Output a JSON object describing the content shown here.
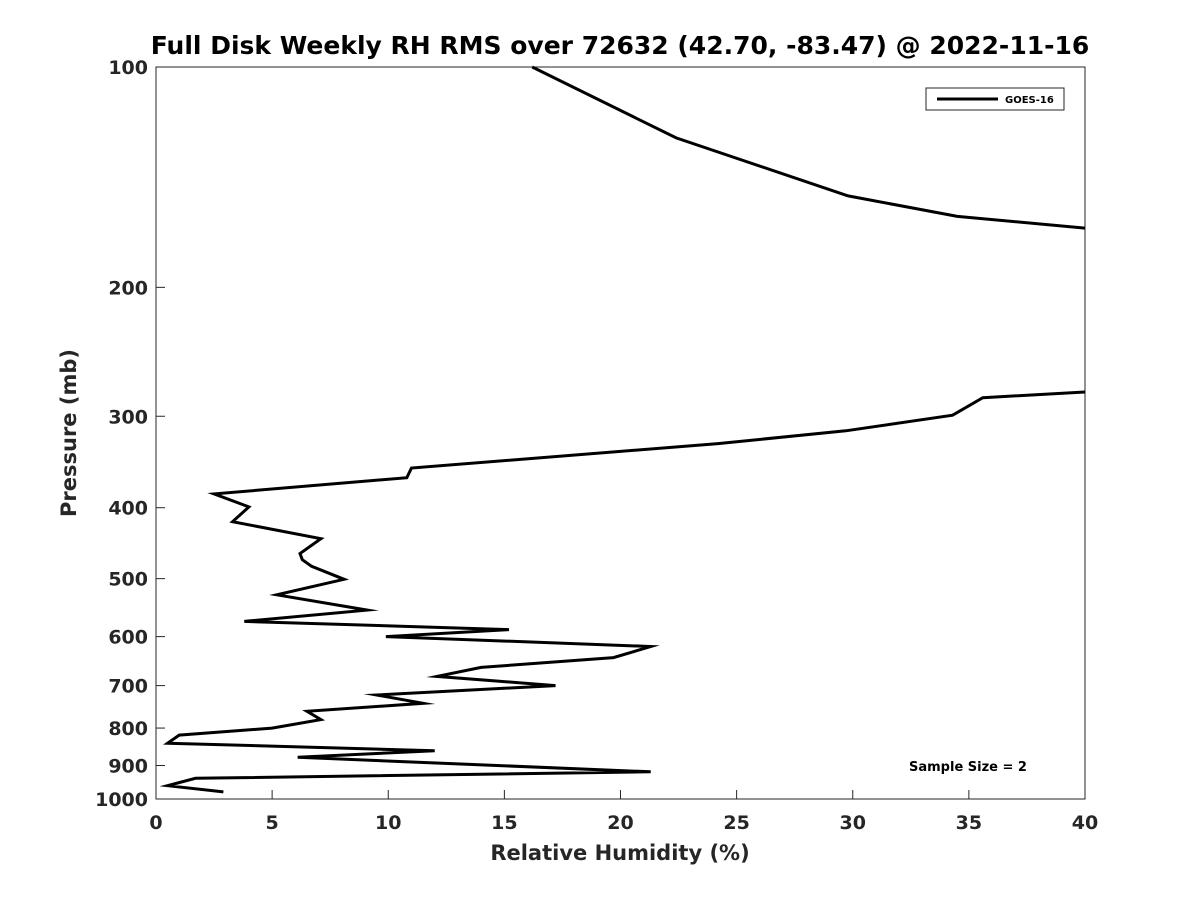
{
  "chart_data": {
    "type": "line",
    "title": "Full Disk Weekly RH RMS over 72632 (42.70, -83.47) @ 2022-11-16",
    "xlabel": "Relative Humidity (%)",
    "ylabel": "Pressure (mb)",
    "xlim": [
      0,
      40
    ],
    "ylim": [
      100,
      1000
    ],
    "y_scale": "log",
    "y_reversed": true,
    "xticks": [
      0,
      5,
      10,
      15,
      20,
      25,
      30,
      35,
      40
    ],
    "yticks": [
      100,
      200,
      300,
      400,
      500,
      600,
      700,
      800,
      900,
      1000
    ],
    "grid": false,
    "legend_position": "top-right",
    "series": [
      {
        "name": "GOES-16",
        "color": "#000000",
        "segments": [
          [
            [
              16.2,
              100
            ],
            [
              22.4,
              125
            ],
            [
              29.8,
              150
            ],
            [
              34.5,
              160
            ],
            [
              40.0,
              166
            ]
          ],
          [
            [
              40.0,
              278
            ],
            [
              35.6,
              283
            ],
            [
              34.3,
              299
            ],
            [
              29.7,
              314
            ],
            [
              24.2,
              327
            ],
            [
              11.0,
              353
            ],
            [
              10.8,
              364
            ],
            [
              2.5,
              383
            ],
            [
              4.0,
              399
            ],
            [
              3.3,
              418
            ],
            [
              7.1,
              441
            ],
            [
              6.2,
              462
            ],
            [
              6.3,
              471
            ],
            [
              6.7,
              481
            ],
            [
              8.1,
              501
            ],
            [
              5.2,
              526
            ],
            [
              9.1,
              552
            ],
            [
              3.8,
              572
            ],
            [
              15.2,
              587
            ],
            [
              9.9,
              600
            ],
            [
              21.3,
              619
            ],
            [
              19.7,
              641
            ],
            [
              14.0,
              661
            ],
            [
              12.1,
              680
            ],
            [
              17.2,
              700
            ],
            [
              9.5,
              721
            ],
            [
              11.5,
              740
            ],
            [
              6.5,
              759
            ],
            [
              7.1,
              779
            ],
            [
              5.0,
              800
            ],
            [
              1.0,
              818
            ],
            [
              0.5,
              839
            ],
            [
              12.0,
              859
            ],
            [
              6.1,
              877
            ],
            [
              21.3,
              918
            ],
            [
              1.7,
              937
            ],
            [
              0.5,
              959
            ],
            [
              2.9,
              978
            ]
          ]
        ]
      }
    ],
    "annotations": [
      "Sample Size = 2"
    ]
  }
}
